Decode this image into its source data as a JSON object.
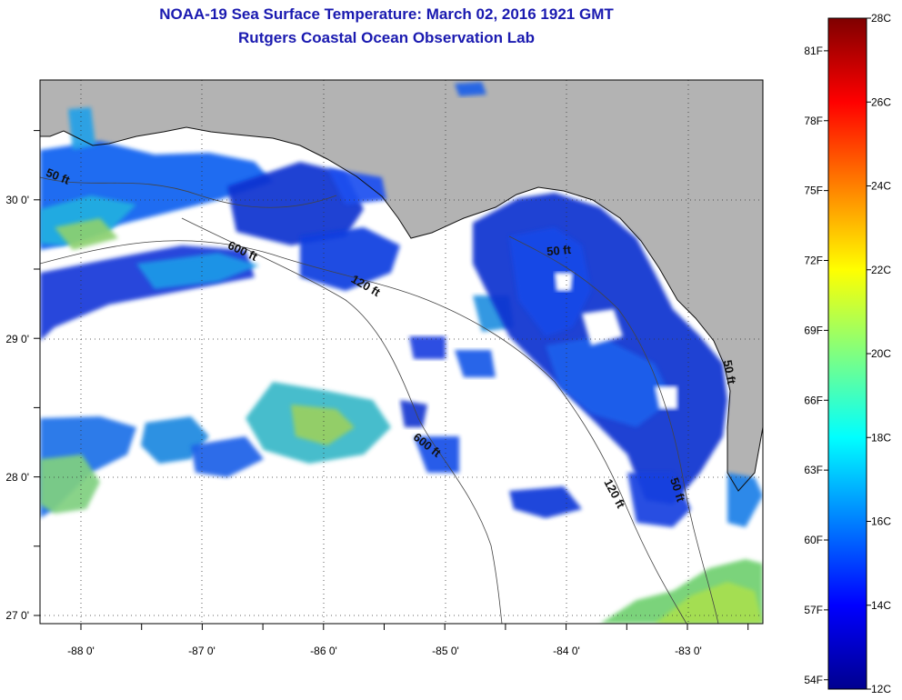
{
  "title": {
    "line1": "NOAA-19 Sea Surface Temperature:  March 02, 2016 1921 GMT",
    "line2": "Rutgers Coastal Ocean Observation Lab"
  },
  "map": {
    "lon_labels": [
      "-88 0'",
      "-87 0'",
      "-86 0'",
      "-85 0'",
      "-84 0'",
      "-83 0'"
    ],
    "lat_labels": [
      "30 0'",
      "29 0'",
      "28 0'",
      "27 0'"
    ],
    "isobath_labels": [
      "50 ft",
      "600 ft",
      "120 ft",
      "50 ft",
      "600 ft",
      "120 ft",
      "50 ft",
      "50 ft"
    ],
    "colors": {
      "land": "#b3b3b3",
      "ocean_no_data": "#ffffff"
    }
  },
  "colorbar": {
    "celsius_labels": [
      "28C",
      "26C",
      "24C",
      "22C",
      "20C",
      "18C",
      "16C",
      "14C",
      "12C"
    ],
    "fahrenheit_labels": [
      "81F",
      "78F",
      "75F",
      "72F",
      "69F",
      "66F",
      "63F",
      "60F",
      "57F",
      "54F"
    ],
    "stops": [
      "#7f0000",
      "#ff0000",
      "#ff8000",
      "#ffff00",
      "#80ff80",
      "#00ffff",
      "#0080ff",
      "#0000ff",
      "#00008f"
    ]
  }
}
